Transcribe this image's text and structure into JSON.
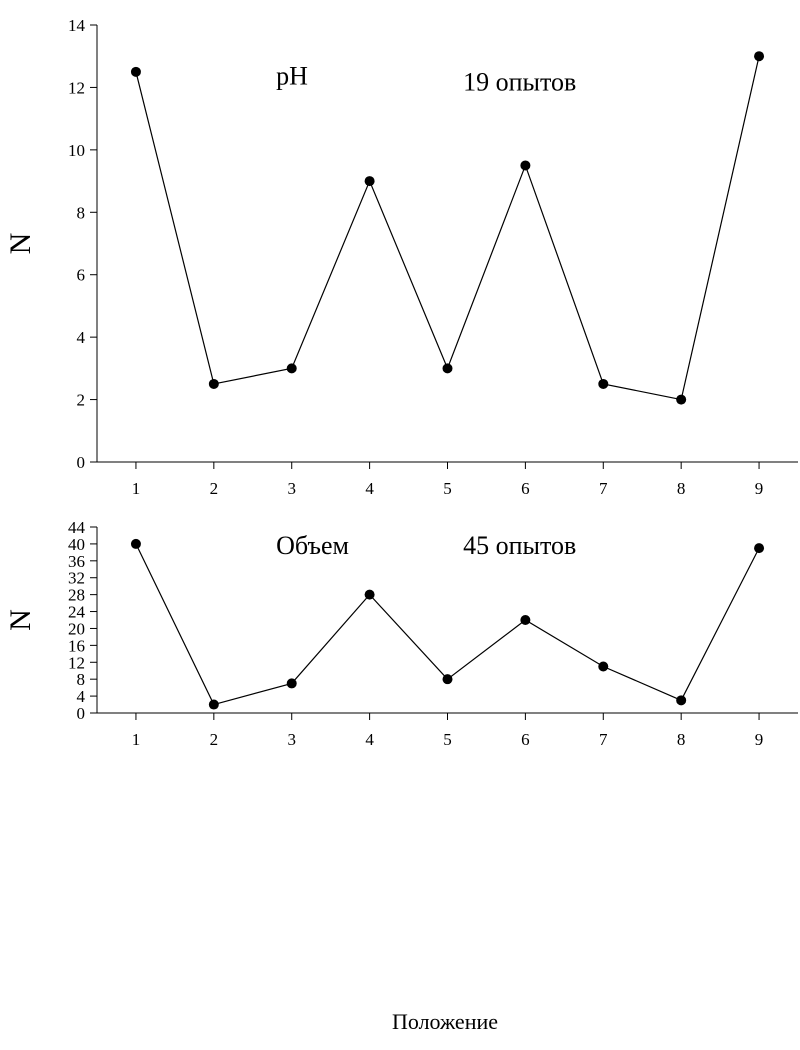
{
  "chart_data": [
    {
      "type": "line",
      "ylabel": "N",
      "x": [
        1,
        2,
        3,
        4,
        5,
        6,
        7,
        8,
        9
      ],
      "xlim": [
        0.5,
        9.5
      ],
      "ylim": [
        0,
        14
      ],
      "yticks": [
        0,
        2,
        4,
        6,
        8,
        10,
        12,
        14
      ],
      "series": [
        {
          "values": [
            12.5,
            2.5,
            3,
            9,
            3,
            9.5,
            2.5,
            2,
            13
          ]
        }
      ],
      "annotations": [
        {
          "text": "pH",
          "x": 2.8,
          "y": 12.1
        },
        {
          "text": "19 опытов",
          "x": 5.2,
          "y": 11.9
        }
      ],
      "grid": false,
      "colors": {
        "line": "#000000",
        "marker": "#000000"
      }
    },
    {
      "type": "line",
      "ylabel": "N",
      "xlabel": "Положение",
      "x": [
        1,
        2,
        3,
        4,
        5,
        6,
        7,
        8,
        9
      ],
      "xlim": [
        0.5,
        9.5
      ],
      "ylim": [
        0,
        44
      ],
      "yticks": [
        0,
        4,
        8,
        12,
        16,
        20,
        24,
        28,
        32,
        36,
        40,
        44
      ],
      "series": [
        {
          "values": [
            40,
            2,
            7,
            28,
            8,
            22,
            11,
            3,
            39
          ]
        }
      ],
      "annotations": [
        {
          "text": "Объем",
          "x": 2.8,
          "y": 37.6
        },
        {
          "text": "45 опытов",
          "x": 5.2,
          "y": 37.6
        }
      ],
      "grid": false,
      "colors": {
        "line": "#000000",
        "marker": "#000000"
      }
    }
  ]
}
